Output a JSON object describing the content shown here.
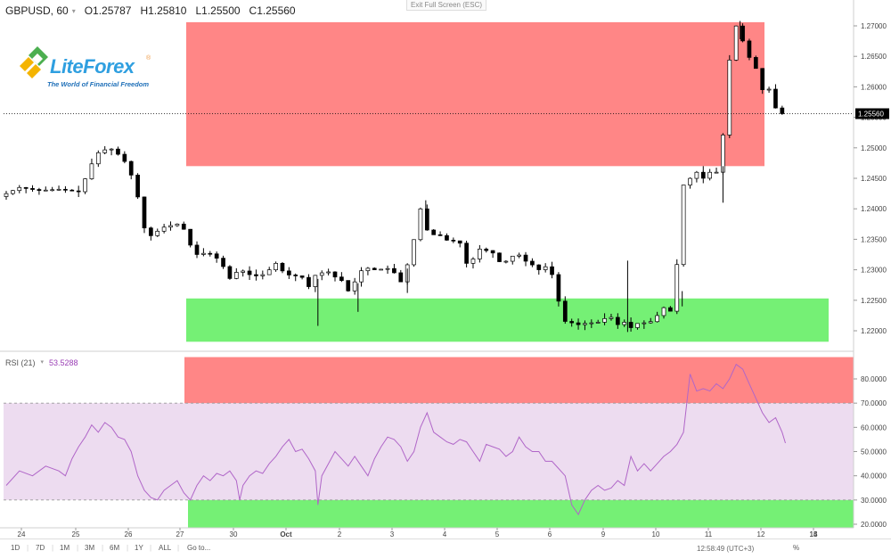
{
  "header": {
    "symbol": "GBPUSD, 60",
    "open": "O1.25787",
    "high": "H1.25810",
    "low": "L1.25500",
    "close": "C1.25560"
  },
  "exit_fullscreen": "Exit Full Screen (ESC)",
  "logo": {
    "brand_a": "Lite",
    "brand_b": "Forex",
    "tagline": "The World of Financial Freedom"
  },
  "rsi": {
    "label": "RSI (21)",
    "value": "53.5288"
  },
  "last_price_label": "1.25560",
  "bottom": {
    "ranges": [
      "1D",
      "7D",
      "1M",
      "3M",
      "6M",
      "1Y",
      "ALL"
    ],
    "goto": "Go to...",
    "clock": "12:58:49 (UTC+3)",
    "pct": "%"
  },
  "colors": {
    "bull": "#ffffff",
    "bear": "#000000",
    "resistance": "#ff6b6b",
    "support": "#66ee66",
    "rsi_line": "#b066c8",
    "rsi_band": "#eddcf0"
  },
  "chart_data": [
    {
      "type": "candlestick",
      "title": "GBPUSD, 60",
      "x_tick_labels": [
        "24",
        "25",
        "26",
        "27",
        "30",
        "Oct",
        "2",
        "3",
        "4",
        "5",
        "6",
        "9",
        "10",
        "11",
        "12",
        "13",
        "14",
        "15"
      ],
      "y_ticks": [
        "1.27000",
        "1.26500",
        "1.26000",
        "1.25500",
        "1.25000",
        "1.24500",
        "1.24000",
        "1.23500",
        "1.23000",
        "1.22500",
        "1.22000"
      ],
      "ylim": [
        1.2175,
        1.2716
      ],
      "last_price": 1.2556,
      "zones": [
        {
          "name": "resistance",
          "y_from": 1.247,
          "y_to": 1.2706,
          "x_from": "27",
          "x_to": "13"
        },
        {
          "name": "support",
          "y_from": 1.2182,
          "y_to": 1.2253,
          "x_from": "27",
          "x_to": "14"
        }
      ],
      "price_path": [
        [
          0,
          1.242
        ],
        [
          3,
          1.2435
        ],
        [
          6,
          1.243
        ],
        [
          9,
          1.2432
        ],
        [
          12,
          1.2428
        ],
        [
          13.5,
          1.246
        ],
        [
          14.5,
          1.2488
        ],
        [
          15.5,
          1.2496
        ],
        [
          17,
          1.2498
        ],
        [
          18.5,
          1.2485
        ],
        [
          19.5,
          1.247
        ],
        [
          20.5,
          1.244
        ],
        [
          21.5,
          1.2398
        ],
        [
          22,
          1.2368
        ],
        [
          22.5,
          1.2352
        ],
        [
          23.5,
          1.236
        ],
        [
          25,
          1.237
        ],
        [
          27,
          1.2375
        ],
        [
          28.5,
          1.2362
        ],
        [
          29,
          1.234
        ],
        [
          29.5,
          1.2328
        ],
        [
          30.5,
          1.2322
        ],
        [
          31.5,
          1.2332
        ],
        [
          32.5,
          1.232
        ],
        [
          33.5,
          1.2318
        ],
        [
          34,
          1.2305
        ],
        [
          34.5,
          1.2292
        ],
        [
          35.2,
          1.2283
        ],
        [
          36,
          1.2296
        ],
        [
          37,
          1.2298
        ],
        [
          38,
          1.2292
        ],
        [
          39,
          1.229
        ],
        [
          40,
          1.2292
        ],
        [
          41,
          1.23
        ],
        [
          41.5,
          1.2316
        ],
        [
          42.5,
          1.2305
        ],
        [
          43.5,
          1.2291
        ],
        [
          44.5,
          1.2292
        ],
        [
          45.5,
          1.2288
        ],
        [
          46.5,
          1.2287
        ],
        [
          47,
          1.2272
        ],
        [
          47.4,
          1.2226
        ],
        [
          47.8,
          1.229
        ],
        [
          48.5,
          1.2293
        ],
        [
          49.5,
          1.2297
        ],
        [
          50.5,
          1.2296
        ],
        [
          51.5,
          1.228
        ],
        [
          52.5,
          1.2285
        ],
        [
          53,
          1.2265
        ],
        [
          53.4,
          1.2248
        ],
        [
          53.8,
          1.2275
        ],
        [
          54.5,
          1.2294
        ],
        [
          55.5,
          1.2303
        ],
        [
          56.5,
          1.2302
        ],
        [
          57.5,
          1.2298
        ],
        [
          58.5,
          1.2304
        ],
        [
          59.5,
          1.23
        ],
        [
          60.5,
          1.229
        ],
        [
          61,
          1.228
        ],
        [
          61.5,
          1.2295
        ],
        [
          62.5,
          1.2322
        ],
        [
          63,
          1.235
        ],
        [
          63.5,
          1.2395
        ],
        [
          64,
          1.24
        ],
        [
          64.5,
          1.2375
        ],
        [
          65.5,
          1.2355
        ],
        [
          66.5,
          1.236
        ],
        [
          67.5,
          1.2352
        ],
        [
          68.5,
          1.2345
        ],
        [
          69.5,
          1.235
        ],
        [
          70.5,
          1.2337
        ],
        [
          71,
          1.231
        ],
        [
          71.5,
          1.2302
        ],
        [
          72,
          1.2318
        ],
        [
          72.5,
          1.2335
        ],
        [
          73.5,
          1.2333
        ],
        [
          74.5,
          1.233
        ],
        [
          75.5,
          1.2325
        ],
        [
          76,
          1.2313
        ],
        [
          76.5,
          1.2313
        ],
        [
          77.5,
          1.2315
        ],
        [
          78.5,
          1.233
        ],
        [
          79.5,
          1.2318
        ],
        [
          80.5,
          1.231
        ],
        [
          81,
          1.2308
        ],
        [
          82,
          1.23
        ],
        [
          83,
          1.2305
        ],
        [
          84,
          1.2292
        ],
        [
          84.5,
          1.2275
        ],
        [
          85,
          1.2248
        ],
        [
          85.5,
          1.2232
        ],
        [
          86,
          1.2215
        ],
        [
          87,
          1.2213
        ],
        [
          88,
          1.221
        ],
        [
          89,
          1.2212
        ],
        [
          90,
          1.2213
        ],
        [
          91,
          1.2214
        ],
        [
          92,
          1.222
        ],
        [
          93,
          1.2222
        ],
        [
          94,
          1.221
        ],
        [
          95,
          1.2214
        ],
        [
          96,
          1.2205
        ],
        [
          97,
          1.2212
        ],
        [
          98,
          1.2213
        ],
        [
          99,
          1.2215
        ],
        [
          100,
          1.2225
        ],
        [
          101,
          1.2238
        ],
        [
          102,
          1.2232
        ],
        [
          102.5,
          1.224
        ],
        [
          103,
          1.231
        ],
        [
          103.5,
          1.2385
        ],
        [
          104,
          1.244
        ],
        [
          105,
          1.245
        ],
        [
          106,
          1.246
        ],
        [
          107,
          1.245
        ],
        [
          108,
          1.246
        ],
        [
          109,
          1.246
        ],
        [
          109.5,
          1.247
        ],
        [
          110,
          1.2522
        ],
        [
          110.5,
          1.259
        ],
        [
          111,
          1.2645
        ],
        [
          111.5,
          1.2688
        ],
        [
          112,
          1.27
        ],
        [
          112.5,
          1.269
        ],
        [
          113,
          1.2675
        ],
        [
          113.5,
          1.266
        ],
        [
          114,
          1.2648
        ],
        [
          115,
          1.263
        ],
        [
          115.5,
          1.2608
        ],
        [
          116,
          1.2595
        ],
        [
          116.5,
          1.2605
        ],
        [
          117,
          1.2596
        ],
        [
          117.5,
          1.2583
        ],
        [
          118,
          1.2565
        ],
        [
          118.5,
          1.2556
        ]
      ],
      "wicks": [
        [
          47.4,
          1.2208,
          1.2285
        ],
        [
          53.5,
          1.2231,
          1.2278
        ],
        [
          61,
          1.2262,
          1.2302
        ],
        [
          63.8,
          1.2368,
          1.2414
        ],
        [
          94.5,
          1.2198,
          1.2315
        ],
        [
          102.8,
          1.224,
          1.2265
        ],
        [
          106,
          1.246,
          1.247
        ],
        [
          109,
          1.241,
          1.247
        ],
        [
          111.6,
          1.2678,
          1.2708
        ]
      ],
      "n_bars": 119
    },
    {
      "type": "line",
      "title": "RSI (21)",
      "y_ticks": [
        "80.0000",
        "70.0000",
        "60.0000",
        "50.0000",
        "40.0000",
        "30.0000",
        "20.0000"
      ],
      "ylim": [
        17.5,
        87.5
      ],
      "levels": {
        "upper": 70,
        "lower": 30
      },
      "zones": [
        {
          "name": "overbought",
          "y_from": 70,
          "y_to": 89,
          "x_from": "27",
          "x_to": "14"
        },
        {
          "name": "oversold",
          "y_from": 18.5,
          "y_to": 30,
          "x_from": "27",
          "x_to": "14"
        }
      ],
      "last_value": 53.5288,
      "values": [
        [
          0,
          36
        ],
        [
          2,
          42
        ],
        [
          4,
          40
        ],
        [
          6,
          44
        ],
        [
          8,
          42
        ],
        [
          9,
          40
        ],
        [
          10,
          47
        ],
        [
          11,
          52
        ],
        [
          12,
          56
        ],
        [
          13,
          61
        ],
        [
          14,
          58
        ],
        [
          15,
          62
        ],
        [
          16,
          60
        ],
        [
          17,
          56
        ],
        [
          18,
          55
        ],
        [
          19,
          50
        ],
        [
          20,
          40
        ],
        [
          21,
          34
        ],
        [
          22,
          31
        ],
        [
          23,
          30
        ],
        [
          24,
          34
        ],
        [
          25,
          36
        ],
        [
          26,
          38
        ],
        [
          27,
          33
        ],
        [
          28,
          30
        ],
        [
          29,
          36
        ],
        [
          30,
          40
        ],
        [
          31,
          38
        ],
        [
          32,
          41
        ],
        [
          33,
          40
        ],
        [
          34,
          42
        ],
        [
          35,
          38
        ],
        [
          35.5,
          30
        ],
        [
          36,
          36
        ],
        [
          37,
          40
        ],
        [
          38,
          42
        ],
        [
          39,
          41
        ],
        [
          40,
          45
        ],
        [
          41,
          48
        ],
        [
          42,
          52
        ],
        [
          43,
          55
        ],
        [
          44,
          50
        ],
        [
          45,
          51
        ],
        [
          46,
          47
        ],
        [
          47,
          42
        ],
        [
          47.4,
          28
        ],
        [
          48,
          40
        ],
        [
          49,
          45
        ],
        [
          50,
          50
        ],
        [
          51,
          47
        ],
        [
          52,
          44
        ],
        [
          53,
          48
        ],
        [
          54,
          44
        ],
        [
          55,
          40
        ],
        [
          56,
          47
        ],
        [
          57,
          52
        ],
        [
          58,
          56
        ],
        [
          59,
          55
        ],
        [
          60,
          52
        ],
        [
          61,
          46
        ],
        [
          62,
          50
        ],
        [
          63,
          60
        ],
        [
          64,
          66
        ],
        [
          65,
          58
        ],
        [
          66,
          56
        ],
        [
          67,
          54
        ],
        [
          68,
          53
        ],
        [
          69,
          55
        ],
        [
          70,
          54
        ],
        [
          71,
          50
        ],
        [
          72,
          46
        ],
        [
          73,
          53
        ],
        [
          74,
          52
        ],
        [
          75,
          51
        ],
        [
          76,
          48
        ],
        [
          77,
          50
        ],
        [
          78,
          56
        ],
        [
          79,
          52
        ],
        [
          80,
          50
        ],
        [
          81,
          50
        ],
        [
          82,
          46
        ],
        [
          83,
          46
        ],
        [
          84,
          43
        ],
        [
          85,
          40
        ],
        [
          86,
          28
        ],
        [
          87,
          24
        ],
        [
          88,
          30
        ],
        [
          89,
          34
        ],
        [
          90,
          36
        ],
        [
          91,
          34
        ],
        [
          92,
          35
        ],
        [
          93,
          38
        ],
        [
          94,
          36
        ],
        [
          95,
          48
        ],
        [
          96,
          42
        ],
        [
          97,
          45
        ],
        [
          98,
          42
        ],
        [
          99,
          45
        ],
        [
          100,
          48
        ],
        [
          101,
          50
        ],
        [
          102,
          53
        ],
        [
          103,
          58
        ],
        [
          104,
          82
        ],
        [
          105,
          75
        ],
        [
          106,
          76
        ],
        [
          107,
          75
        ],
        [
          108,
          78
        ],
        [
          109,
          76
        ],
        [
          110,
          80
        ],
        [
          111,
          86
        ],
        [
          112,
          84
        ],
        [
          113,
          78
        ],
        [
          114,
          72
        ],
        [
          115,
          66
        ],
        [
          116,
          62
        ],
        [
          117,
          64
        ],
        [
          118,
          58
        ],
        [
          118.5,
          53.5
        ]
      ]
    }
  ]
}
